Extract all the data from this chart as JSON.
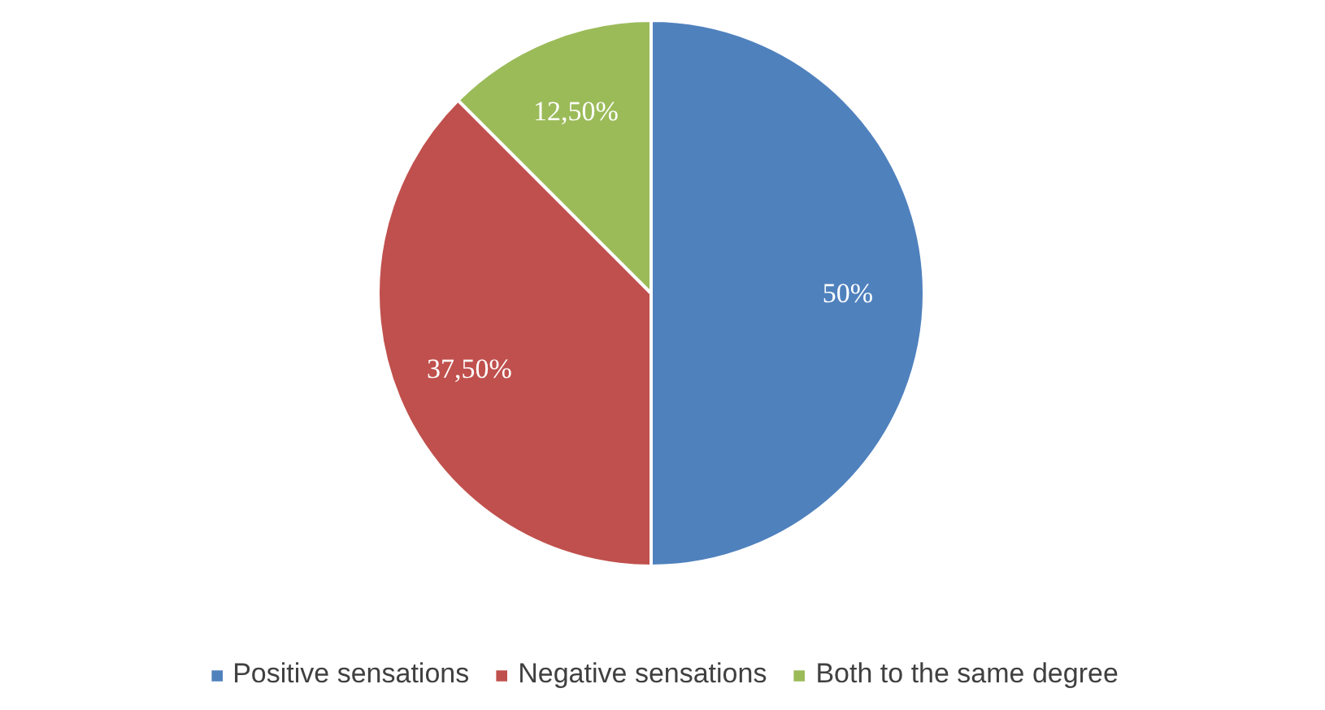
{
  "chart_data": {
    "type": "pie",
    "categories": [
      "Positive sensations",
      "Negative sensations",
      "Both to the same degree"
    ],
    "values": [
      50,
      37.5,
      12.5
    ],
    "value_labels": [
      "50%",
      "37,50%",
      "12,50%"
    ],
    "colors": [
      "#4f81bd",
      "#c0504d",
      "#9bbb59"
    ],
    "legend": "bottom"
  }
}
